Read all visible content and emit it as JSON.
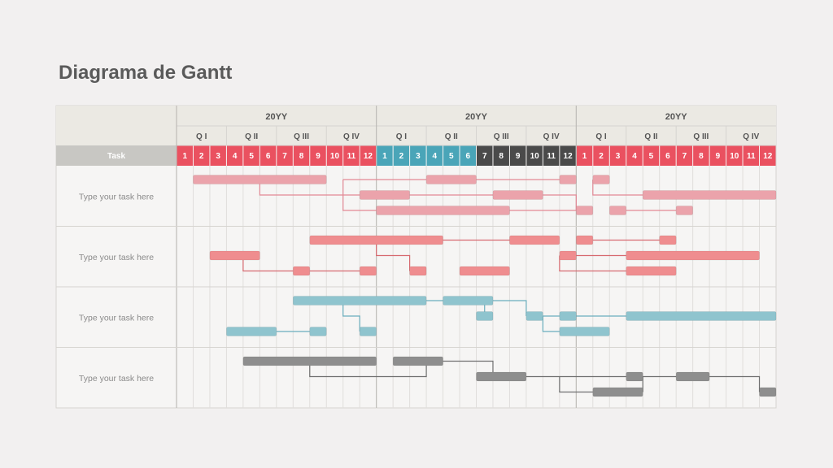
{
  "page": {
    "title": "Diagrama de Gantt"
  },
  "colors": {
    "red": "#ea5160",
    "teal": "#4aa5b8",
    "dark": "#4a4a4a",
    "pink_bar": "#eba3ab",
    "salmon_bar": "#ef8d8f",
    "teal_bar": "#8fc4ce",
    "gray_bar": "#8e8e8e",
    "header_bg": "#ebe9e3",
    "task_header_bg": "#c8c7c3"
  },
  "header": {
    "task_label": "Task",
    "years": [
      "20YY",
      "20YY",
      "20YY"
    ],
    "quarters": [
      "Q I",
      "Q II",
      "Q III",
      "Q IV"
    ],
    "months": [
      "1",
      "2",
      "3",
      "4",
      "5",
      "6",
      "7",
      "8",
      "9",
      "10",
      "11",
      "12"
    ]
  },
  "rows": [
    {
      "label": "Type your task here",
      "color_key": "pink_bar",
      "bars": [
        [
          1,
          9,
          0
        ],
        [
          15,
          18,
          0
        ],
        [
          23,
          24,
          0
        ],
        [
          25,
          26,
          0
        ],
        [
          11,
          14,
          1
        ],
        [
          19,
          22,
          1
        ],
        [
          28,
          36,
          1
        ],
        [
          12,
          20,
          2
        ],
        [
          24,
          25,
          2
        ],
        [
          26,
          27,
          2
        ],
        [
          30,
          31,
          2
        ]
      ],
      "links": [
        [
          [
            10,
            0
          ],
          [
            15,
            0
          ]
        ],
        [
          [
            18,
            0
          ],
          [
            23,
            0
          ]
        ],
        [
          [
            5,
            0
          ],
          [
            5,
            1
          ],
          [
            11,
            1
          ]
        ],
        [
          [
            25,
            0
          ],
          [
            25,
            1
          ],
          [
            28,
            1
          ]
        ],
        [
          [
            10,
            0
          ],
          [
            10,
            2
          ],
          [
            12,
            2
          ]
        ],
        [
          [
            20,
            2
          ],
          [
            24,
            2
          ]
        ],
        [
          [
            27,
            2
          ],
          [
            30,
            2
          ]
        ],
        [
          [
            14,
            1
          ],
          [
            19,
            1
          ]
        ],
        [
          [
            22,
            1
          ],
          [
            24,
            1
          ],
          [
            24,
            2
          ]
        ]
      ]
    },
    {
      "label": "Type your task here",
      "color_key": "salmon_bar",
      "bars": [
        [
          8,
          16,
          0
        ],
        [
          20,
          23,
          0
        ],
        [
          24,
          25,
          0
        ],
        [
          29,
          30,
          0
        ],
        [
          2,
          5,
          1
        ],
        [
          23,
          24,
          1
        ],
        [
          27,
          35,
          1
        ],
        [
          7,
          8,
          2
        ],
        [
          11,
          12,
          2
        ],
        [
          14,
          15,
          2
        ],
        [
          17,
          20,
          2
        ],
        [
          27,
          30,
          2
        ]
      ],
      "links": [
        [
          [
            16,
            0
          ],
          [
            20,
            0
          ]
        ],
        [
          [
            25,
            0
          ],
          [
            29,
            0
          ]
        ],
        [
          [
            12,
            0
          ],
          [
            12,
            1
          ],
          [
            14,
            1
          ],
          [
            14,
            2
          ]
        ],
        [
          [
            4,
            1
          ],
          [
            4,
            2
          ],
          [
            7,
            2
          ]
        ],
        [
          [
            8,
            2
          ],
          [
            11,
            2
          ]
        ],
        [
          [
            24,
            1
          ],
          [
            27,
            1
          ]
        ],
        [
          [
            23,
            1
          ],
          [
            23,
            2
          ],
          [
            27,
            2
          ]
        ]
      ]
    },
    {
      "label": "Type your task here",
      "color_key": "teal_bar",
      "bars": [
        [
          7,
          15,
          0
        ],
        [
          16,
          19,
          0
        ],
        [
          18,
          19,
          1
        ],
        [
          21,
          22,
          1
        ],
        [
          23,
          24,
          1
        ],
        [
          27,
          36,
          1
        ],
        [
          3,
          6,
          2
        ],
        [
          8,
          9,
          2
        ],
        [
          11,
          12,
          2
        ],
        [
          23,
          26,
          2
        ]
      ],
      "links": [
        [
          [
            15,
            0
          ],
          [
            16,
            0
          ]
        ],
        [
          [
            19,
            0
          ],
          [
            21,
            0
          ],
          [
            21,
            1
          ]
        ],
        [
          [
            22,
            1
          ],
          [
            23,
            1
          ]
        ],
        [
          [
            24,
            1
          ],
          [
            27,
            1
          ]
        ],
        [
          [
            6,
            2
          ],
          [
            8,
            2
          ]
        ],
        [
          [
            10,
            0
          ],
          [
            10,
            1
          ],
          [
            11,
            1
          ],
          [
            11,
            2
          ]
        ],
        [
          [
            22,
            1
          ],
          [
            22,
            2
          ],
          [
            23,
            2
          ]
        ],
        [
          [
            18.5,
            0
          ],
          [
            18.5,
            1
          ]
        ]
      ]
    },
    {
      "label": "Type your task here",
      "color_key": "gray_bar",
      "bars": [
        [
          4,
          12,
          0
        ],
        [
          13,
          16,
          0
        ],
        [
          18,
          21,
          1
        ],
        [
          27,
          28,
          1
        ],
        [
          30,
          32,
          1
        ],
        [
          25,
          28,
          2
        ],
        [
          35,
          36,
          2
        ]
      ],
      "links": [
        [
          [
            8,
            0
          ],
          [
            8,
            1
          ],
          [
            15,
            1
          ],
          [
            15,
            0
          ]
        ],
        [
          [
            16,
            0
          ],
          [
            19,
            0
          ],
          [
            19,
            1
          ]
        ],
        [
          [
            21,
            1
          ],
          [
            27,
            1
          ]
        ],
        [
          [
            28,
            1
          ],
          [
            30,
            1
          ]
        ],
        [
          [
            32,
            1
          ],
          [
            35,
            1
          ],
          [
            35,
            2
          ]
        ],
        [
          [
            23,
            1
          ],
          [
            23,
            2
          ],
          [
            25,
            2
          ]
        ],
        [
          [
            28,
            2
          ],
          [
            28,
            1
          ]
        ]
      ]
    }
  ]
}
